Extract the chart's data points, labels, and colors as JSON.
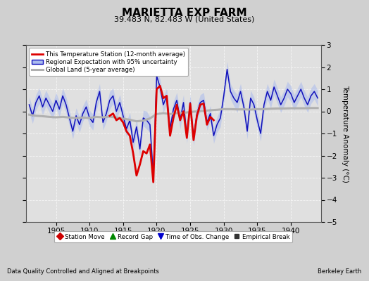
{
  "title": "MARIETTA EXP FARM",
  "subtitle": "39.483 N, 82.483 W (United States)",
  "ylabel": "Temperature Anomaly (°C)",
  "xlabel_left": "Data Quality Controlled and Aligned at Breakpoints",
  "xlabel_right": "Berkeley Earth",
  "xlim": [
    1900.5,
    1944.5
  ],
  "ylim": [
    -5,
    3
  ],
  "yticks": [
    -5,
    -4,
    -3,
    -2,
    -1,
    0,
    1,
    2,
    3
  ],
  "xticks": [
    1905,
    1910,
    1915,
    1920,
    1925,
    1930,
    1935,
    1940
  ],
  "bg_color": "#d0d0d0",
  "plot_bg_color": "#e0e0e0",
  "legend1_labels": [
    "This Temperature Station (12-month average)",
    "Regional Expectation with 95% uncertainty",
    "Global Land (5-year average)"
  ],
  "legend2_items": [
    {
      "label": "Station Move",
      "marker": "D",
      "color": "#cc0000"
    },
    {
      "label": "Record Gap",
      "marker": "^",
      "color": "#008800"
    },
    {
      "label": "Time of Obs. Change",
      "marker": "v",
      "color": "#0000cc"
    },
    {
      "label": "Empirical Break",
      "marker": "s",
      "color": "#333333"
    }
  ],
  "blue_x": [
    1901,
    1901.5,
    1902,
    1902.5,
    1903,
    1903.5,
    1904,
    1904.5,
    1905,
    1905.5,
    1906,
    1906.5,
    1907,
    1907.5,
    1908,
    1908.5,
    1909,
    1909.5,
    1910,
    1910.5,
    1911,
    1911.5,
    1912,
    1912.5,
    1913,
    1913.5,
    1914,
    1914.5,
    1915,
    1915.5,
    1916,
    1916.5,
    1917,
    1917.5,
    1918,
    1918.5,
    1919,
    1919.5,
    1920,
    1920.5,
    1921,
    1921.5,
    1922,
    1922.5,
    1923,
    1923.5,
    1924,
    1924.5,
    1925,
    1925.5,
    1926,
    1926.5,
    1927,
    1927.5,
    1928,
    1928.5,
    1929,
    1929.5,
    1930,
    1930.5,
    1931,
    1931.5,
    1932,
    1932.5,
    1933,
    1933.5,
    1934,
    1934.5,
    1935,
    1935.5,
    1936,
    1936.5,
    1937,
    1937.5,
    1938,
    1938.5,
    1939,
    1939.5,
    1940,
    1940.5,
    1941,
    1941.5,
    1942,
    1942.5,
    1943,
    1943.5,
    1944
  ],
  "blue_y": [
    0.3,
    -0.2,
    0.4,
    0.7,
    0.2,
    0.6,
    0.3,
    0.0,
    0.5,
    0.1,
    0.7,
    0.3,
    -0.3,
    -0.9,
    -0.2,
    -0.6,
    -0.1,
    0.2,
    -0.3,
    -0.5,
    0.4,
    0.9,
    -0.5,
    -0.1,
    0.5,
    0.7,
    0.0,
    0.4,
    -0.2,
    -0.8,
    -0.4,
    -1.4,
    -0.7,
    -1.7,
    -0.3,
    -0.4,
    -0.6,
    -2.9,
    1.6,
    1.1,
    0.3,
    0.7,
    -0.8,
    0.1,
    0.5,
    -0.4,
    0.4,
    -1.1,
    0.4,
    -1.2,
    -0.1,
    0.4,
    0.5,
    -0.5,
    -0.1,
    -1.1,
    -0.6,
    -0.3,
    0.7,
    1.9,
    0.9,
    0.6,
    0.4,
    0.9,
    0.2,
    -0.9,
    0.6,
    0.3,
    -0.4,
    -1.0,
    0.3,
    0.9,
    0.5,
    1.1,
    0.7,
    0.3,
    0.6,
    1.0,
    0.8,
    0.4,
    0.7,
    1.0,
    0.6,
    0.3,
    0.7,
    0.9,
    0.6
  ],
  "blue_upper": [
    0.65,
    0.15,
    0.75,
    1.05,
    0.55,
    0.95,
    0.65,
    0.35,
    0.85,
    0.45,
    1.05,
    0.65,
    0.05,
    -0.55,
    0.15,
    -0.25,
    0.25,
    0.55,
    0.05,
    -0.15,
    0.75,
    1.25,
    -0.15,
    0.25,
    0.9,
    1.05,
    0.35,
    0.75,
    0.15,
    -0.45,
    -0.05,
    -1.05,
    -0.35,
    -1.35,
    0.05,
    0.0,
    -0.25,
    -2.55,
    2.0,
    1.45,
    0.65,
    1.05,
    -0.45,
    0.45,
    0.85,
    0.0,
    0.75,
    -0.75,
    0.75,
    -0.85,
    0.25,
    0.75,
    0.85,
    -0.15,
    0.25,
    -0.75,
    -0.25,
    0.1,
    1.05,
    2.25,
    1.25,
    0.95,
    0.75,
    1.25,
    0.55,
    -0.55,
    0.95,
    0.65,
    -0.05,
    -0.65,
    0.65,
    1.25,
    0.85,
    1.45,
    1.05,
    0.65,
    0.95,
    1.35,
    1.15,
    0.75,
    1.05,
    1.35,
    0.95,
    0.65,
    1.05,
    1.25,
    0.95
  ],
  "blue_lower": [
    -0.05,
    -0.55,
    0.05,
    0.35,
    -0.15,
    0.25,
    -0.05,
    -0.35,
    0.15,
    -0.25,
    0.35,
    -0.05,
    -0.65,
    -1.25,
    -0.55,
    -0.95,
    -0.45,
    -0.15,
    -0.65,
    -0.85,
    0.05,
    0.55,
    -0.85,
    -0.45,
    0.1,
    0.35,
    -0.35,
    0.05,
    -0.55,
    -1.15,
    -0.75,
    -1.75,
    -1.05,
    -2.05,
    -0.65,
    -0.8,
    -0.95,
    -3.25,
    1.2,
    0.75,
    -0.05,
    0.35,
    -1.15,
    -0.25,
    0.15,
    -0.8,
    0.05,
    -1.45,
    0.05,
    -1.55,
    -0.45,
    0.05,
    0.15,
    -0.85,
    -0.45,
    -1.45,
    -0.95,
    -0.7,
    0.35,
    1.55,
    0.55,
    0.25,
    -0.05,
    0.55,
    -0.15,
    -1.25,
    0.25,
    -0.05,
    -0.75,
    -1.35,
    -0.05,
    0.55,
    0.15,
    0.75,
    0.35,
    -0.05,
    0.25,
    0.65,
    0.45,
    0.05,
    0.35,
    0.65,
    0.25,
    -0.05,
    0.35,
    0.55,
    0.25
  ],
  "red_x": [
    1913,
    1913.5,
    1914,
    1914.5,
    1915,
    1915.5,
    1916,
    1916.5,
    1917,
    1917.5,
    1918,
    1918.5,
    1919,
    1919.5,
    1920,
    1920.5,
    1921,
    1921.5,
    1922,
    1922.5,
    1923,
    1923.5,
    1924,
    1924.5,
    1925,
    1925.5,
    1926,
    1926.5,
    1927,
    1927.5,
    1928,
    1928.5
  ],
  "red_y": [
    -0.2,
    -0.1,
    -0.4,
    -0.3,
    -0.5,
    -0.9,
    -1.1,
    -1.9,
    -2.9,
    -2.4,
    -1.8,
    -1.9,
    -1.5,
    -3.2,
    1.0,
    1.15,
    0.6,
    0.7,
    -1.1,
    -0.3,
    0.3,
    -0.4,
    0.0,
    -1.2,
    0.35,
    -1.3,
    -0.2,
    0.3,
    0.35,
    -0.6,
    -0.25,
    -0.4
  ],
  "gray_x": [
    1901,
    1902,
    1903,
    1904,
    1905,
    1906,
    1907,
    1908,
    1909,
    1910,
    1911,
    1912,
    1913,
    1914,
    1915,
    1916,
    1917,
    1918,
    1919,
    1920,
    1921,
    1922,
    1923,
    1924,
    1925,
    1926,
    1927,
    1928,
    1929,
    1930,
    1931,
    1932,
    1933,
    1934,
    1935,
    1936,
    1937,
    1938,
    1939,
    1940,
    1941,
    1942,
    1943,
    1944
  ],
  "gray_y": [
    -0.15,
    -0.2,
    -0.22,
    -0.25,
    -0.27,
    -0.25,
    -0.28,
    -0.3,
    -0.28,
    -0.3,
    -0.25,
    -0.27,
    -0.24,
    -0.28,
    -0.33,
    -0.38,
    -0.45,
    -0.42,
    -0.32,
    -0.12,
    -0.08,
    -0.12,
    -0.08,
    -0.07,
    -0.03,
    0.0,
    0.02,
    0.05,
    0.07,
    0.1,
    0.1,
    0.09,
    0.09,
    0.08,
    0.1,
    0.1,
    0.12,
    0.13,
    0.13,
    0.14,
    0.14,
    0.14,
    0.15,
    0.15
  ]
}
